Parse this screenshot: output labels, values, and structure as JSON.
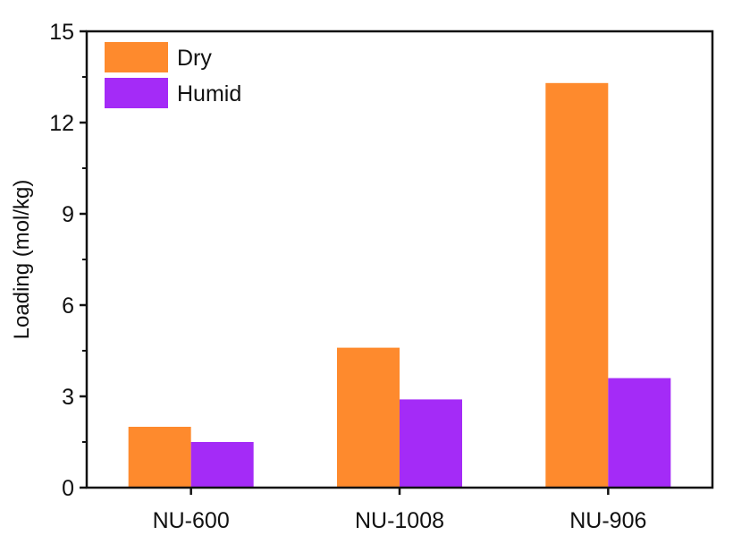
{
  "chart_data": {
    "type": "bar",
    "title": "",
    "xlabel": "",
    "ylabel": "Loading (mol/kg)",
    "ylim": [
      0,
      15
    ],
    "yticks": [
      0,
      3,
      6,
      9,
      12,
      15
    ],
    "categories": [
      "NU-600",
      "NU-1008",
      "NU-906"
    ],
    "series": [
      {
        "name": "Dry",
        "values": [
          2.0,
          4.6,
          13.3
        ],
        "color": "#fe8a2d"
      },
      {
        "name": "Humid",
        "values": [
          1.5,
          2.9,
          3.6
        ],
        "color": "#a42bf7"
      }
    ],
    "legend_position": "top-left",
    "grid": false
  }
}
